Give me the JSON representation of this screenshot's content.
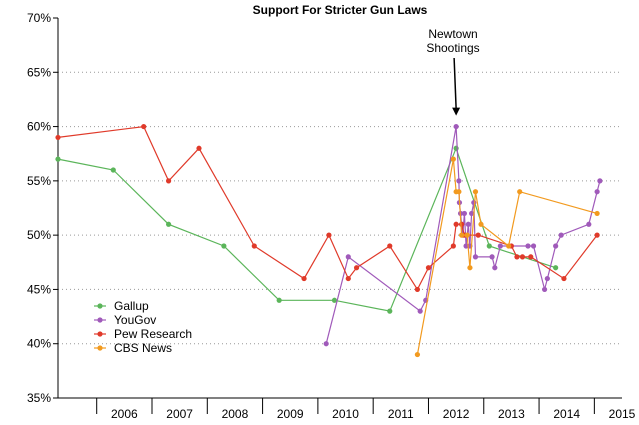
{
  "chart_data": {
    "type": "line",
    "title": "Support For Stricter Gun Laws",
    "xlabel": "",
    "ylabel": "",
    "xlim": [
      2005.3,
      2015.5
    ],
    "ylim": [
      35,
      70
    ],
    "y_ticks": [
      35,
      40,
      45,
      50,
      55,
      60,
      65,
      70
    ],
    "y_tick_labels": [
      "35%",
      "40%",
      "45%",
      "50%",
      "55%",
      "60%",
      "65%",
      "70%"
    ],
    "x_tick_labels": [
      "2006",
      "2007",
      "2008",
      "2009",
      "2010",
      "2011",
      "2012",
      "2013",
      "2014",
      "2015"
    ],
    "grid": "horizontal dotted",
    "legend_position": "bottom-left",
    "annotation": {
      "line1": "Newtown",
      "line2": "Shootings",
      "x": 2012.5,
      "y": 60
    },
    "series": [
      {
        "name": "Gallup",
        "color": "#5bb55a",
        "points": [
          [
            2005.3,
            57
          ],
          [
            2006.3,
            56
          ],
          [
            2007.3,
            51
          ],
          [
            2008.3,
            49
          ],
          [
            2009.3,
            44
          ],
          [
            2010.3,
            44
          ],
          [
            2011.3,
            43
          ],
          [
            2012.5,
            58
          ],
          [
            2013.1,
            49
          ],
          [
            2014.3,
            47
          ]
        ]
      },
      {
        "name": "YouGov",
        "color": "#a05aba",
        "points": [
          [
            2010.15,
            40
          ],
          [
            2010.55,
            48
          ],
          [
            2011.85,
            43
          ],
          [
            2011.95,
            44
          ],
          [
            2012.5,
            60
          ],
          [
            2012.55,
            55
          ],
          [
            2012.56,
            53
          ],
          [
            2012.58,
            52
          ],
          [
            2012.6,
            51
          ],
          [
            2012.62,
            50
          ],
          [
            2012.65,
            52
          ],
          [
            2012.68,
            49
          ],
          [
            2012.72,
            51
          ],
          [
            2012.75,
            49
          ],
          [
            2012.78,
            52
          ],
          [
            2012.82,
            53
          ],
          [
            2012.85,
            48
          ],
          [
            2013.15,
            48
          ],
          [
            2013.2,
            47
          ],
          [
            2013.3,
            49
          ],
          [
            2013.8,
            49
          ],
          [
            2013.9,
            49
          ],
          [
            2014.1,
            45
          ],
          [
            2014.15,
            46
          ],
          [
            2014.3,
            49
          ],
          [
            2014.4,
            50
          ],
          [
            2014.9,
            51
          ],
          [
            2015.05,
            54
          ],
          [
            2015.1,
            55
          ]
        ]
      },
      {
        "name": "Pew Research",
        "color": "#e03a2a",
        "points": [
          [
            2005.3,
            59
          ],
          [
            2006.85,
            60
          ],
          [
            2007.3,
            55
          ],
          [
            2007.85,
            58
          ],
          [
            2008.85,
            49
          ],
          [
            2009.75,
            46
          ],
          [
            2010.2,
            50
          ],
          [
            2010.55,
            46
          ],
          [
            2010.7,
            47
          ],
          [
            2011.3,
            49
          ],
          [
            2011.8,
            45
          ],
          [
            2012.0,
            47
          ],
          [
            2012.45,
            49
          ],
          [
            2012.5,
            51
          ],
          [
            2012.6,
            51
          ],
          [
            2012.65,
            50
          ],
          [
            2012.9,
            50
          ],
          [
            2013.5,
            49
          ],
          [
            2013.6,
            48
          ],
          [
            2013.7,
            48
          ],
          [
            2013.85,
            48
          ],
          [
            2014.45,
            46
          ],
          [
            2015.05,
            50
          ]
        ]
      },
      {
        "name": "CBS News",
        "color": "#f29a1f",
        "points": [
          [
            2011.8,
            39
          ],
          [
            2012.45,
            57
          ],
          [
            2012.5,
            54
          ],
          [
            2012.55,
            54
          ],
          [
            2012.6,
            50
          ],
          [
            2012.7,
            50
          ],
          [
            2012.75,
            47
          ],
          [
            2012.85,
            54
          ],
          [
            2012.95,
            51
          ],
          [
            2013.45,
            49
          ],
          [
            2013.65,
            54
          ],
          [
            2015.05,
            52
          ]
        ]
      }
    ]
  }
}
